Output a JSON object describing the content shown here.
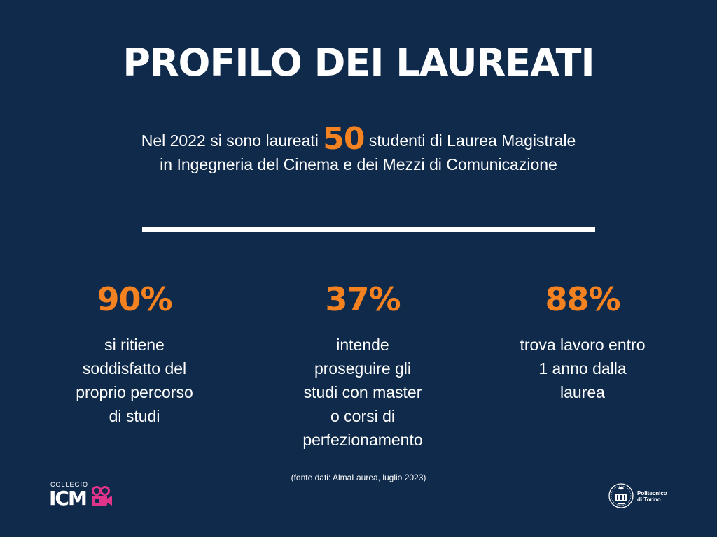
{
  "title": "PROFILO DEI LAUREATI",
  "intro": {
    "before": "Nel 2022 si sono laureati ",
    "number": "50",
    "after": " studenti di Laurea Magistrale",
    "line2": "in Ingegneria del Cinema e dei Mezzi di Comunicazione"
  },
  "stats": [
    {
      "percent": "90%",
      "lines": [
        "si ritiene",
        "soddisfatto del",
        "proprio percorso",
        "di studi"
      ]
    },
    {
      "percent": "37%",
      "lines": [
        "intende",
        "proseguire gli",
        "studi con master",
        "o corsi di",
        "perfezionamento"
      ]
    },
    {
      "percent": "88%",
      "lines": [
        "trova lavoro entro",
        "1 anno dalla",
        "laurea"
      ]
    }
  ],
  "source": "(fonte dati: AlmaLaurea, luglio 2023)",
  "logos": {
    "collegio": "COLLEGIO",
    "icm": "ICM",
    "camera_icon": "video-camera-icon",
    "polito_name": "Politecnico\ndi Torino",
    "polito_seal_icon": "university-seal-icon"
  },
  "colors": {
    "background": "#0f2a4a",
    "accent": "#f58220",
    "text": "#ffffff",
    "icm_camera": "#e0338a"
  }
}
